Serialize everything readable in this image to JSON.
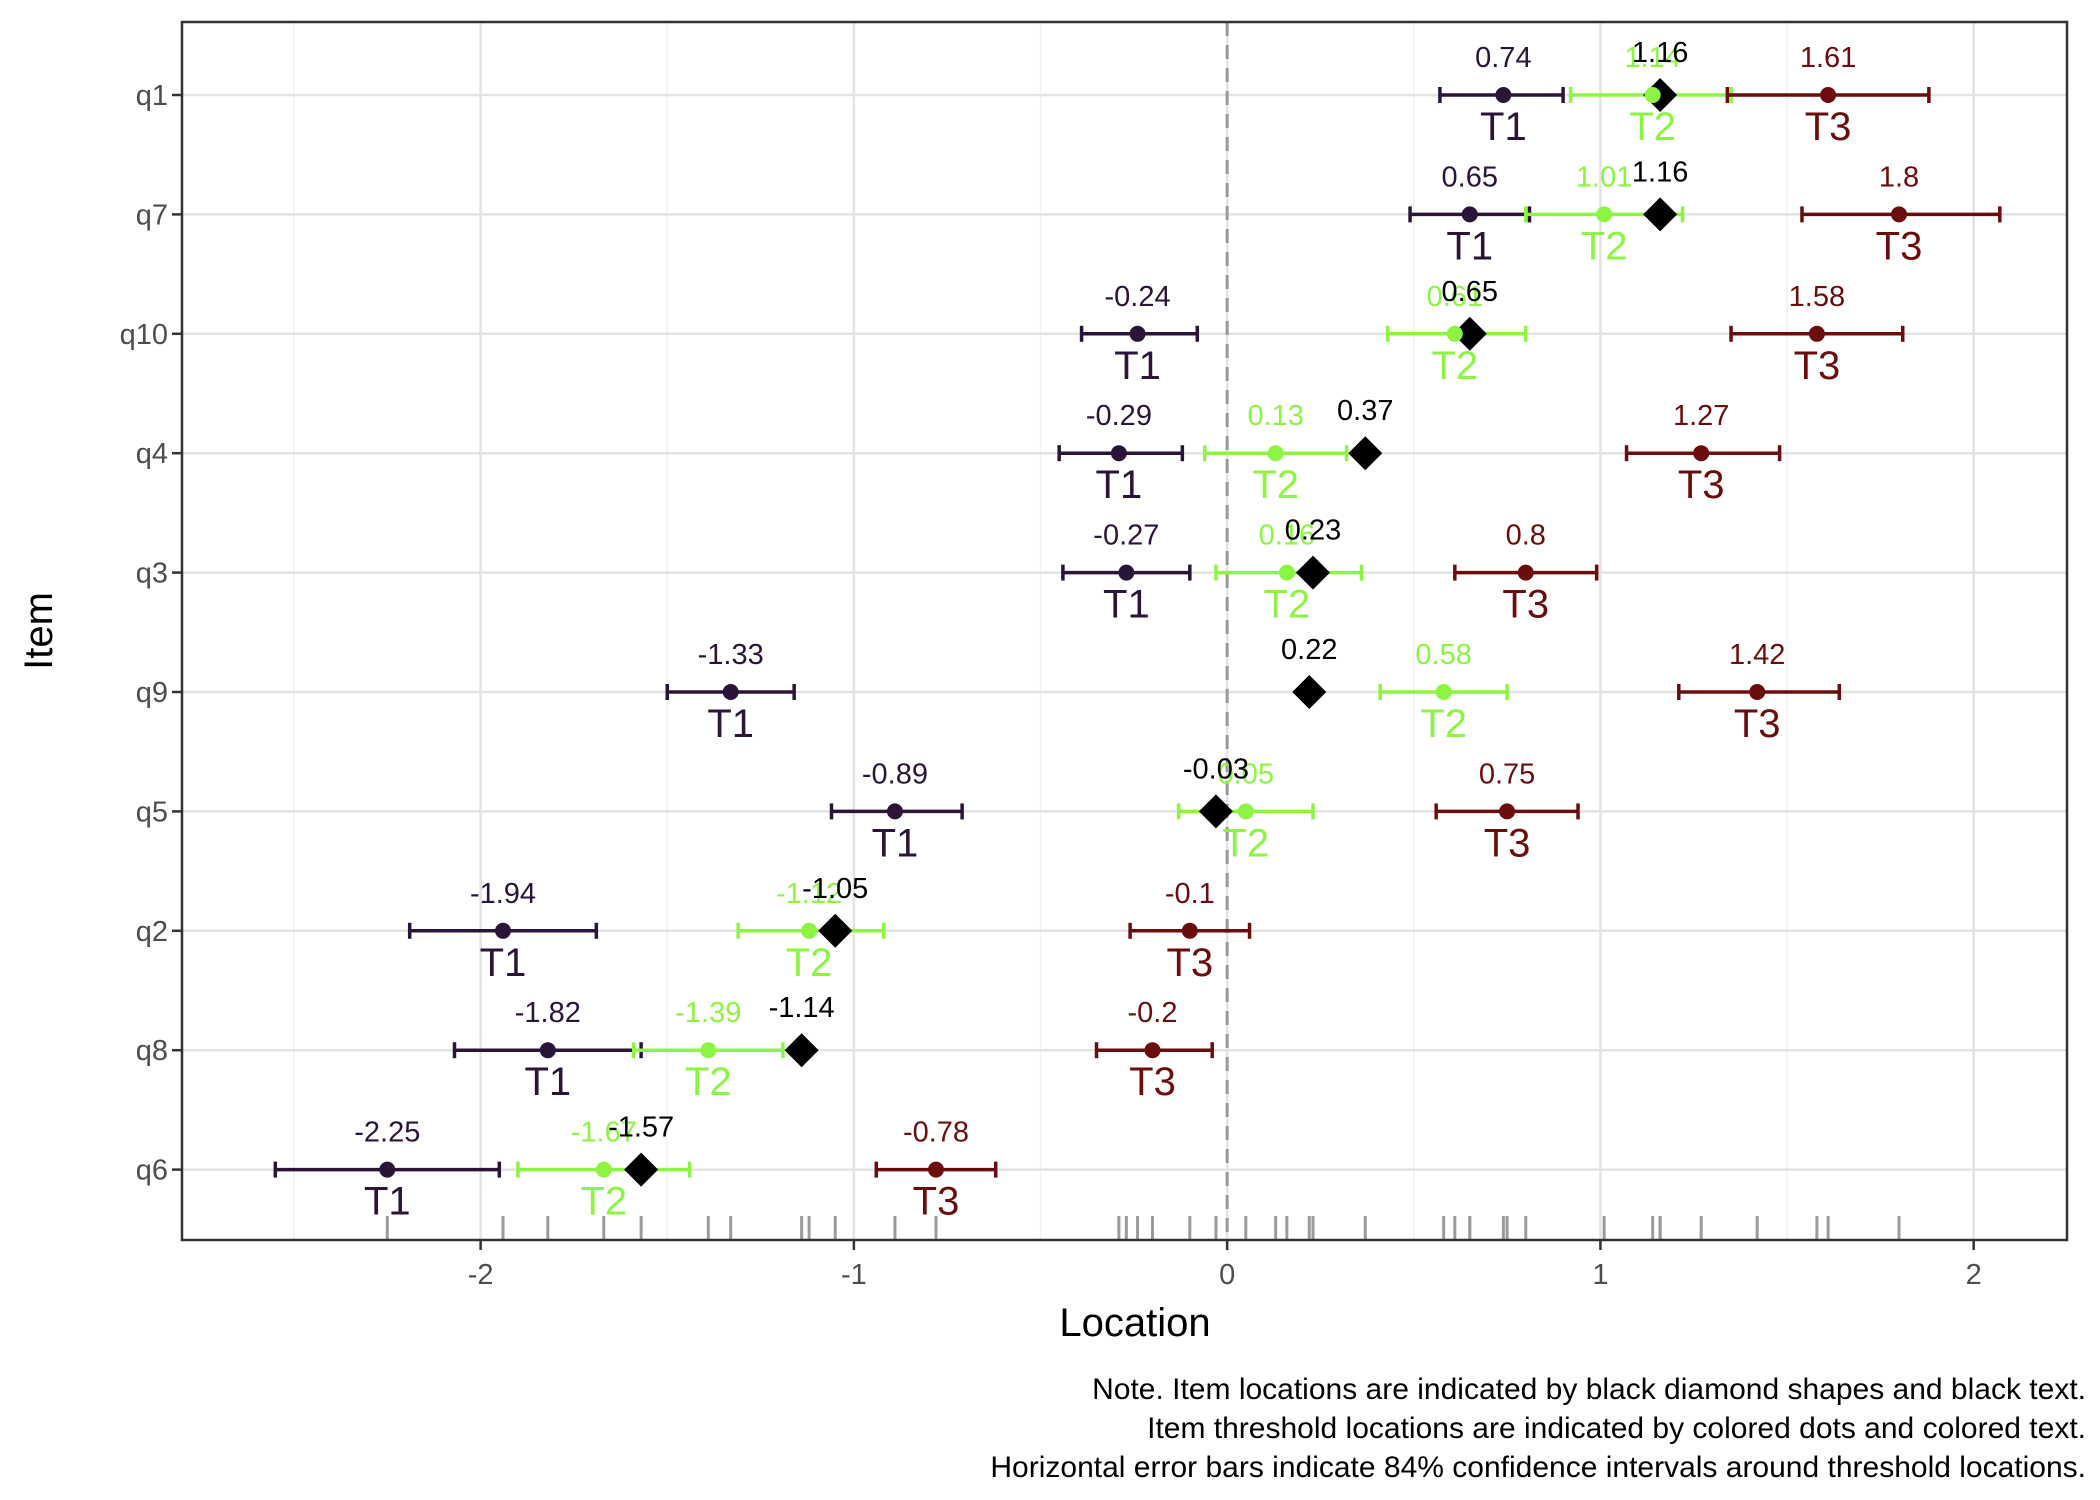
{
  "chart_data": {
    "type": "scatter",
    "xlabel": "Location",
    "ylabel": "Item",
    "xlim": [
      -2.8,
      2.25
    ],
    "x_ticks": [
      -2,
      -1,
      0,
      1,
      2
    ],
    "x_tick_labels": [
      "-2",
      "-1",
      "0",
      "1",
      "2"
    ],
    "grid": true,
    "reference_line_x": 0,
    "items": [
      "q1",
      "q7",
      "q10",
      "q4",
      "q3",
      "q9",
      "q5",
      "q2",
      "q8",
      "q6"
    ],
    "threshold_names": [
      "T1",
      "T2",
      "T3"
    ],
    "threshold_colors": [
      "#2a1538",
      "#8cf542",
      "#6b0d0d"
    ],
    "item_marker_color": "#000000",
    "series": [
      {
        "item": "q1",
        "location": 1.16,
        "location_label": "1.16",
        "thresholds": [
          {
            "name": "T1",
            "value": 0.74,
            "label": "0.74",
            "ci": [
              0.57,
              0.9
            ]
          },
          {
            "name": "T2",
            "value": 1.14,
            "label": "1.14",
            "ci": [
              0.92,
              1.35
            ]
          },
          {
            "name": "T3",
            "value": 1.61,
            "label": "1.61",
            "ci": [
              1.34,
              1.88
            ]
          }
        ]
      },
      {
        "item": "q7",
        "location": 1.16,
        "location_label": "1.16",
        "thresholds": [
          {
            "name": "T1",
            "value": 0.65,
            "label": "0.65",
            "ci": [
              0.49,
              0.81
            ]
          },
          {
            "name": "T2",
            "value": 1.01,
            "label": "1.01",
            "ci": [
              0.8,
              1.22
            ]
          },
          {
            "name": "T3",
            "value": 1.8,
            "label": "1.8",
            "ci": [
              1.54,
              2.07
            ]
          }
        ]
      },
      {
        "item": "q10",
        "location": 0.65,
        "location_label": "0.65",
        "thresholds": [
          {
            "name": "T1",
            "value": -0.24,
            "label": "-0.24",
            "ci": [
              -0.39,
              -0.08
            ]
          },
          {
            "name": "T2",
            "value": 0.61,
            "label": "0.61",
            "ci": [
              0.43,
              0.8
            ]
          },
          {
            "name": "T3",
            "value": 1.58,
            "label": "1.58",
            "ci": [
              1.35,
              1.81
            ]
          }
        ]
      },
      {
        "item": "q4",
        "location": 0.37,
        "location_label": "0.37",
        "thresholds": [
          {
            "name": "T1",
            "value": -0.29,
            "label": "-0.29",
            "ci": [
              -0.45,
              -0.12
            ]
          },
          {
            "name": "T2",
            "value": 0.13,
            "label": "0.13",
            "ci": [
              -0.06,
              0.32
            ]
          },
          {
            "name": "T3",
            "value": 1.27,
            "label": "1.27",
            "ci": [
              1.07,
              1.48
            ]
          }
        ]
      },
      {
        "item": "q3",
        "location": 0.23,
        "location_label": "0.23",
        "thresholds": [
          {
            "name": "T1",
            "value": -0.27,
            "label": "-0.27",
            "ci": [
              -0.44,
              -0.1
            ]
          },
          {
            "name": "T2",
            "value": 0.16,
            "label": "0.16",
            "ci": [
              -0.03,
              0.36
            ]
          },
          {
            "name": "T3",
            "value": 0.8,
            "label": "0.8",
            "ci": [
              0.61,
              0.99
            ]
          }
        ]
      },
      {
        "item": "q9",
        "location": 0.22,
        "location_label": "0.22",
        "thresholds": [
          {
            "name": "T1",
            "value": -1.33,
            "label": "-1.33",
            "ci": [
              -1.5,
              -1.16
            ]
          },
          {
            "name": "T2",
            "value": 0.58,
            "label": "0.58",
            "ci": [
              0.41,
              0.75
            ]
          },
          {
            "name": "T3",
            "value": 1.42,
            "label": "1.42",
            "ci": [
              1.21,
              1.64
            ]
          }
        ]
      },
      {
        "item": "q5",
        "location": -0.03,
        "location_label": "-0.03",
        "thresholds": [
          {
            "name": "T1",
            "value": -0.89,
            "label": "-0.89",
            "ci": [
              -1.06,
              -0.71
            ]
          },
          {
            "name": "T2",
            "value": 0.05,
            "label": "0.05",
            "ci": [
              -0.13,
              0.23
            ]
          },
          {
            "name": "T3",
            "value": 0.75,
            "label": "0.75",
            "ci": [
              0.56,
              0.94
            ]
          }
        ]
      },
      {
        "item": "q2",
        "location": -1.05,
        "location_label": "-1.05",
        "thresholds": [
          {
            "name": "T1",
            "value": -1.94,
            "label": "-1.94",
            "ci": [
              -2.19,
              -1.69
            ]
          },
          {
            "name": "T2",
            "value": -1.12,
            "label": "-1.12",
            "ci": [
              -1.31,
              -0.92
            ]
          },
          {
            "name": "T3",
            "value": -0.1,
            "label": "-0.1",
            "ci": [
              -0.26,
              0.06
            ]
          }
        ]
      },
      {
        "item": "q8",
        "location": -1.14,
        "location_label": "-1.14",
        "thresholds": [
          {
            "name": "T1",
            "value": -1.82,
            "label": "-1.82",
            "ci": [
              -2.07,
              -1.57
            ]
          },
          {
            "name": "T2",
            "value": -1.39,
            "label": "-1.39",
            "ci": [
              -1.59,
              -1.19
            ]
          },
          {
            "name": "T3",
            "value": -0.2,
            "label": "-0.2",
            "ci": [
              -0.35,
              -0.04
            ]
          }
        ]
      },
      {
        "item": "q6",
        "location": -1.57,
        "location_label": "-1.57",
        "thresholds": [
          {
            "name": "T1",
            "value": -2.25,
            "label": "-2.25",
            "ci": [
              -2.55,
              -1.95
            ]
          },
          {
            "name": "T2",
            "value": -1.67,
            "label": "-1.67",
            "ci": [
              -1.9,
              -1.44
            ]
          },
          {
            "name": "T3",
            "value": -0.78,
            "label": "-0.78",
            "ci": [
              -0.94,
              -0.62
            ]
          }
        ]
      }
    ],
    "rug_values": [
      -2.25,
      -1.94,
      -1.82,
      -1.67,
      -1.57,
      -1.39,
      -1.33,
      -1.14,
      -1.12,
      -1.05,
      -0.89,
      -0.78,
      -0.29,
      -0.27,
      -0.24,
      -0.2,
      -0.1,
      -0.03,
      0.05,
      0.13,
      0.16,
      0.22,
      0.23,
      0.37,
      0.58,
      0.61,
      0.65,
      0.65,
      0.74,
      0.75,
      0.8,
      1.01,
      1.14,
      1.16,
      1.16,
      1.27,
      1.42,
      1.58,
      1.61,
      1.8
    ],
    "notes": [
      "Note. Item locations are indicated by black diamond shapes and black text.",
      "Item threshold locations are indicated by colored dots and colored text.",
      "Horizontal error bars indicate 84% confidence intervals around threshold locations."
    ]
  }
}
